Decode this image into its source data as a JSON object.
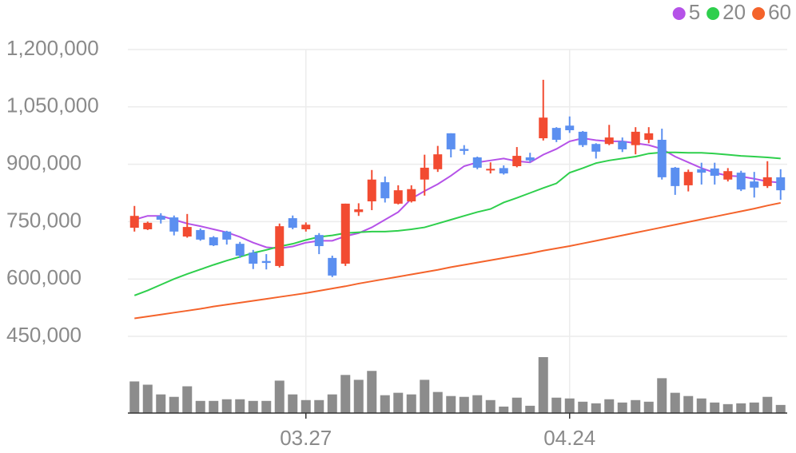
{
  "chart_data": {
    "type": "candlestick",
    "legend": "top-right",
    "ylim": [
      450000,
      1200000
    ],
    "yticks": [
      {
        "value": 1200000,
        "label": "1,200,000"
      },
      {
        "value": 1050000,
        "label": "1,050,000"
      },
      {
        "value": 900000,
        "label": "900,000"
      },
      {
        "value": 750000,
        "label": "750,000"
      },
      {
        "value": 600000,
        "label": "600,000"
      },
      {
        "value": 450000,
        "label": "450,000"
      }
    ],
    "grid": true,
    "up_color": "#f24b31",
    "down_color": "#5b8ff0",
    "volume_color": "#8c8c8c",
    "categories": [
      null,
      null,
      null,
      null,
      null,
      null,
      null,
      null,
      null,
      null,
      null,
      null,
      null,
      "03.27",
      null,
      null,
      null,
      null,
      null,
      null,
      null,
      null,
      null,
      null,
      null,
      null,
      null,
      null,
      null,
      null,
      null,
      null,
      null,
      "04.24",
      null,
      null,
      null,
      null,
      null,
      null,
      null,
      null,
      null,
      null,
      null,
      null,
      null,
      null,
      null,
      null
    ],
    "open": [
      734000,
      730000,
      765000,
      761000,
      711000,
      728000,
      709000,
      724000,
      692000,
      669000,
      647000,
      634000,
      759000,
      730000,
      715000,
      655000,
      640000,
      775000,
      803000,
      853000,
      797000,
      803000,
      860000,
      887000,
      981000,
      940000,
      918000,
      884000,
      890000,
      895000,
      918000,
      968000,
      995000,
      1001000,
      985000,
      953000,
      953000,
      960000,
      950000,
      964000,
      964000,
      891000,
      845000,
      887000,
      889000,
      860000,
      878000,
      855000,
      843000,
      866000
    ],
    "high": [
      791000,
      750000,
      772000,
      766000,
      770000,
      732000,
      712000,
      726000,
      697000,
      676000,
      665000,
      745000,
      766000,
      748000,
      720000,
      661000,
      797000,
      798000,
      885000,
      868000,
      845000,
      845000,
      925000,
      948000,
      981000,
      950000,
      920000,
      905000,
      897000,
      945000,
      930000,
      1121000,
      997000,
      1025000,
      987000,
      955000,
      1003000,
      970000,
      997000,
      997000,
      993000,
      893000,
      886000,
      904000,
      904000,
      890000,
      883000,
      880000,
      908000,
      887000
    ],
    "low": [
      724000,
      728000,
      745000,
      714000,
      708000,
      700000,
      686000,
      690000,
      655000,
      626000,
      625000,
      630000,
      730000,
      724000,
      665000,
      605000,
      634000,
      765000,
      780000,
      800000,
      795000,
      800000,
      818000,
      880000,
      918000,
      925000,
      887000,
      876000,
      873000,
      892000,
      905000,
      962000,
      958000,
      982000,
      945000,
      915000,
      950000,
      932000,
      926000,
      955000,
      860000,
      820000,
      829000,
      847000,
      847000,
      855000,
      830000,
      813000,
      838000,
      807000
    ],
    "close": [
      765000,
      747000,
      755000,
      724000,
      736000,
      703000,
      688000,
      703000,
      661000,
      640000,
      642000,
      738000,
      734000,
      742000,
      686000,
      609000,
      797000,
      782000,
      860000,
      811000,
      832000,
      835000,
      891000,
      926000,
      939000,
      935000,
      891000,
      888000,
      876000,
      922000,
      910000,
      1022000,
      964000,
      989000,
      950000,
      933000,
      970000,
      939000,
      985000,
      981000,
      866000,
      843000,
      880000,
      878000,
      870000,
      882000,
      834000,
      839000,
      866000,
      832000
    ],
    "volume": [
      39,
      35,
      23,
      20,
      33,
      15,
      15,
      17,
      17,
      15,
      15,
      40,
      23,
      16,
      16,
      23,
      47,
      41,
      52,
      22,
      25,
      23,
      41,
      26,
      21,
      20,
      22,
      16,
      8,
      19,
      9,
      69,
      19,
      18,
      14,
      12,
      17,
      13,
      16,
      14,
      43,
      25,
      21,
      18,
      13,
      11,
      12,
      13,
      20,
      10
    ],
    "series": [
      {
        "name": "5",
        "color": "#b552e8",
        "values": [
          755000,
          765000,
          765000,
          755000,
          745000,
          738000,
          730000,
          722000,
          710000,
          695000,
          683000,
          680000,
          685000,
          695000,
          700000,
          700000,
          712000,
          720000,
          735000,
          755000,
          775000,
          810000,
          830000,
          848000,
          870000,
          895000,
          905000,
          910000,
          915000,
          908000,
          905000,
          925000,
          940000,
          960000,
          968000,
          963000,
          960000,
          960000,
          955000,
          950000,
          940000,
          920000,
          905000,
          890000,
          878000,
          870000,
          868000,
          862000,
          855000,
          852000
        ]
      },
      {
        "name": "20",
        "color": "#2ecf4c",
        "values": [
          557000,
          570000,
          585000,
          600000,
          613000,
          625000,
          637000,
          648000,
          658000,
          668000,
          676000,
          685000,
          692000,
          702000,
          710000,
          714000,
          720000,
          722000,
          724000,
          724000,
          726000,
          730000,
          735000,
          745000,
          755000,
          765000,
          775000,
          783000,
          800000,
          812000,
          825000,
          838000,
          850000,
          878000,
          890000,
          903000,
          910000,
          915000,
          920000,
          928000,
          931000,
          931000,
          930000,
          930000,
          928000,
          925000,
          922000,
          920000,
          918000,
          915000
        ]
      },
      {
        "name": "60",
        "color": "#f4632b",
        "values": [
          497000,
          502000,
          507000,
          512000,
          517000,
          522000,
          528000,
          533000,
          538000,
          543000,
          548000,
          553000,
          558000,
          563000,
          569000,
          575000,
          581000,
          588000,
          594000,
          600000,
          606000,
          612000,
          618000,
          624000,
          631000,
          637000,
          643000,
          649000,
          655000,
          661000,
          667000,
          674000,
          680000,
          686000,
          693000,
          700000,
          707000,
          714000,
          721000,
          728000,
          735000,
          742000,
          749000,
          756000,
          763000,
          770000,
          777000,
          784000,
          792000,
          799000
        ]
      }
    ]
  }
}
